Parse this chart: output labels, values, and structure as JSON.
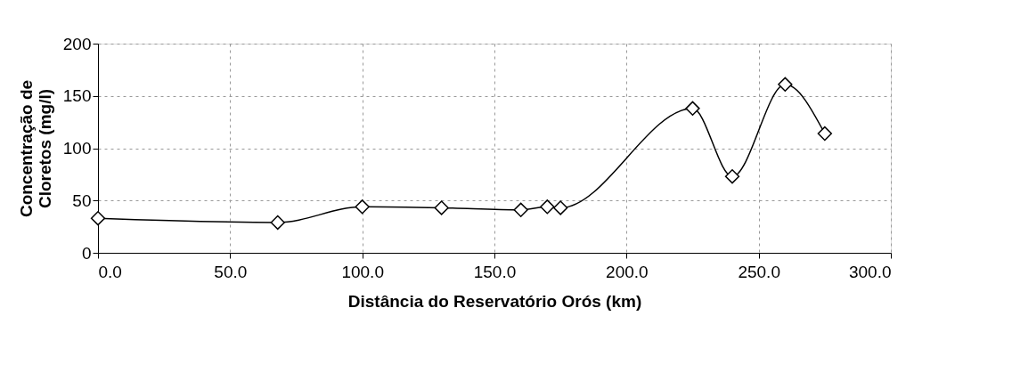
{
  "chart_data": {
    "type": "line",
    "xlabel": "Distância do Reservatório Orós (km)",
    "ylabel": "Concentração de\nCloretos (mg/l)",
    "x": [
      0,
      68,
      100,
      130,
      160,
      170,
      175,
      225,
      240,
      260,
      275
    ],
    "series": [
      {
        "color": "#000000",
        "values": [
          33,
          29,
          44,
          43,
          41,
          44,
          43,
          138,
          73,
          161,
          114
        ]
      }
    ],
    "xlim": [
      0,
      300
    ],
    "xticks": [
      {
        "value": 0,
        "label": "0.0"
      },
      {
        "value": 50,
        "label": "50.0"
      },
      {
        "value": 100,
        "label": "100.0"
      },
      {
        "value": 150,
        "label": "150.0"
      },
      {
        "value": 200,
        "label": "200.0"
      },
      {
        "value": 250,
        "label": "250.0"
      },
      {
        "value": 300,
        "label": "300.0"
      }
    ],
    "ylim": [
      0,
      200
    ],
    "yticks": [
      0,
      50,
      100,
      150,
      200
    ],
    "grid": true,
    "marker": "diamond",
    "line_style": "solid"
  }
}
